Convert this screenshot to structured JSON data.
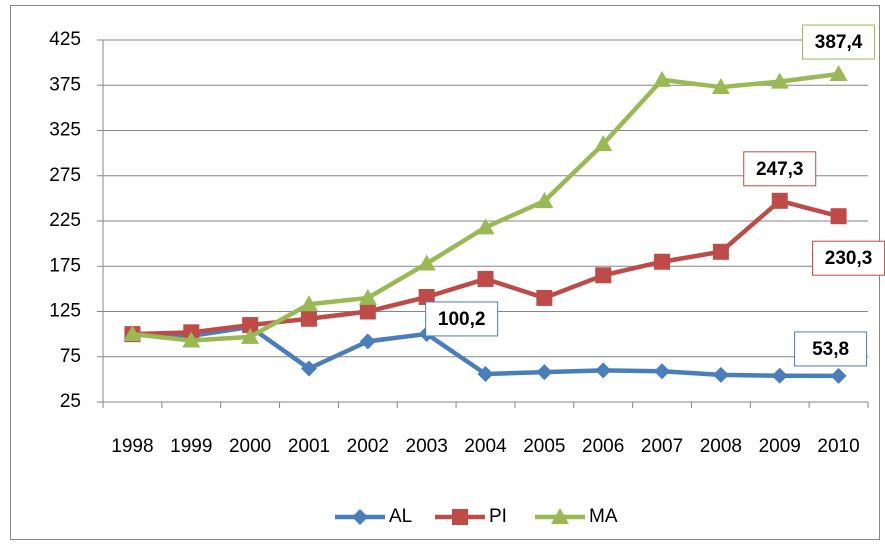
{
  "chart_data": {
    "type": "line",
    "categories": [
      "1998",
      "1999",
      "2000",
      "2001",
      "2002",
      "2003",
      "2004",
      "2005",
      "2006",
      "2007",
      "2008",
      "2009",
      "2010"
    ],
    "series": [
      {
        "name": "AL",
        "color": "#4a7ebb",
        "marker": "diamond",
        "values": [
          100,
          98,
          108,
          62,
          92,
          100.2,
          56,
          58,
          60,
          59,
          55,
          54,
          53.8
        ],
        "value_labels": [
          null,
          null,
          null,
          null,
          null,
          "100,2",
          null,
          null,
          null,
          null,
          null,
          null,
          "53,8"
        ]
      },
      {
        "name": "PI",
        "color": "#be4b48",
        "marker": "square",
        "values": [
          100,
          102,
          110,
          117,
          125,
          141,
          161,
          140,
          165,
          180,
          191,
          247.3,
          230.3
        ],
        "value_labels": [
          null,
          null,
          null,
          null,
          null,
          null,
          null,
          null,
          null,
          null,
          null,
          "247,3",
          "230,3"
        ]
      },
      {
        "name": "MA",
        "color": "#98b954",
        "marker": "triangle",
        "values": [
          100,
          93,
          97,
          133,
          140,
          178,
          218,
          247,
          310,
          381,
          373,
          379,
          387.4
        ],
        "value_labels": [
          null,
          null,
          null,
          null,
          null,
          null,
          null,
          null,
          null,
          null,
          null,
          null,
          "387,4"
        ]
      }
    ],
    "ylim": [
      25,
      425
    ],
    "yticks": [
      25,
      75,
      125,
      175,
      225,
      275,
      325,
      375,
      425
    ],
    "grid": true,
    "legend": "bottom"
  }
}
